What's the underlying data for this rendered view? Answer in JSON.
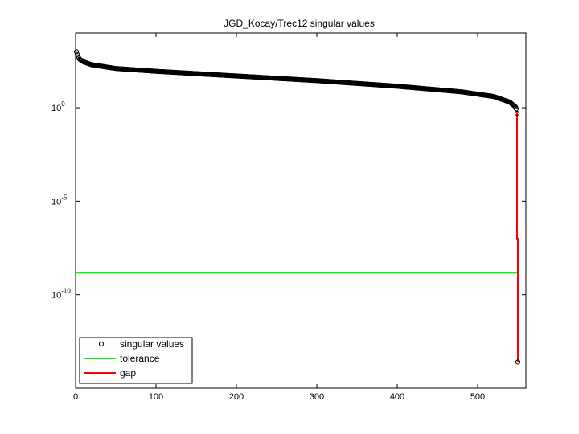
{
  "chart_data": {
    "type": "scatter",
    "title": "JGD_Kocay/Trec12 singular values",
    "xlabel": "",
    "ylabel": "",
    "xlim": [
      0,
      560
    ],
    "ylim_log10": [
      -15,
      4
    ],
    "yscale": "log",
    "grid": false,
    "legend_position": "bottom-left",
    "x_ticks": [
      "0",
      "100",
      "200",
      "300",
      "400",
      "500"
    ],
    "y_ticks": [
      {
        "base": "10",
        "exp": "0",
        "value": 1
      },
      {
        "base": "10",
        "exp": "-5",
        "value": 1e-05
      },
      {
        "base": "10",
        "exp": "-10",
        "value": 1e-10
      }
    ],
    "series": [
      {
        "name": "singular values",
        "marker": "circle",
        "color": "#000000",
        "n_points": 550,
        "profile_index_log10": [
          [
            1,
            3.0
          ],
          [
            2,
            2.85
          ],
          [
            3,
            2.72
          ],
          [
            5,
            2.6
          ],
          [
            10,
            2.45
          ],
          [
            20,
            2.3
          ],
          [
            50,
            2.1
          ],
          [
            100,
            1.95
          ],
          [
            200,
            1.7
          ],
          [
            300,
            1.45
          ],
          [
            400,
            1.15
          ],
          [
            480,
            0.85
          ],
          [
            520,
            0.6
          ],
          [
            540,
            0.3
          ],
          [
            547,
            0.05
          ],
          [
            548,
            -0.05
          ],
          [
            549,
            -0.3
          ],
          [
            550,
            -13.6
          ]
        ]
      },
      {
        "name": "tolerance",
        "type": "hline",
        "color": "#00ff00",
        "y": 1.5e-09,
        "x_range": [
          1,
          550
        ]
      },
      {
        "name": "gap",
        "type": "line",
        "color": "#ff0000",
        "x": [
          549,
          549,
          550,
          550
        ],
        "y": [
          0.6,
          1e-07,
          1e-07,
          2.5e-14
        ]
      }
    ]
  }
}
